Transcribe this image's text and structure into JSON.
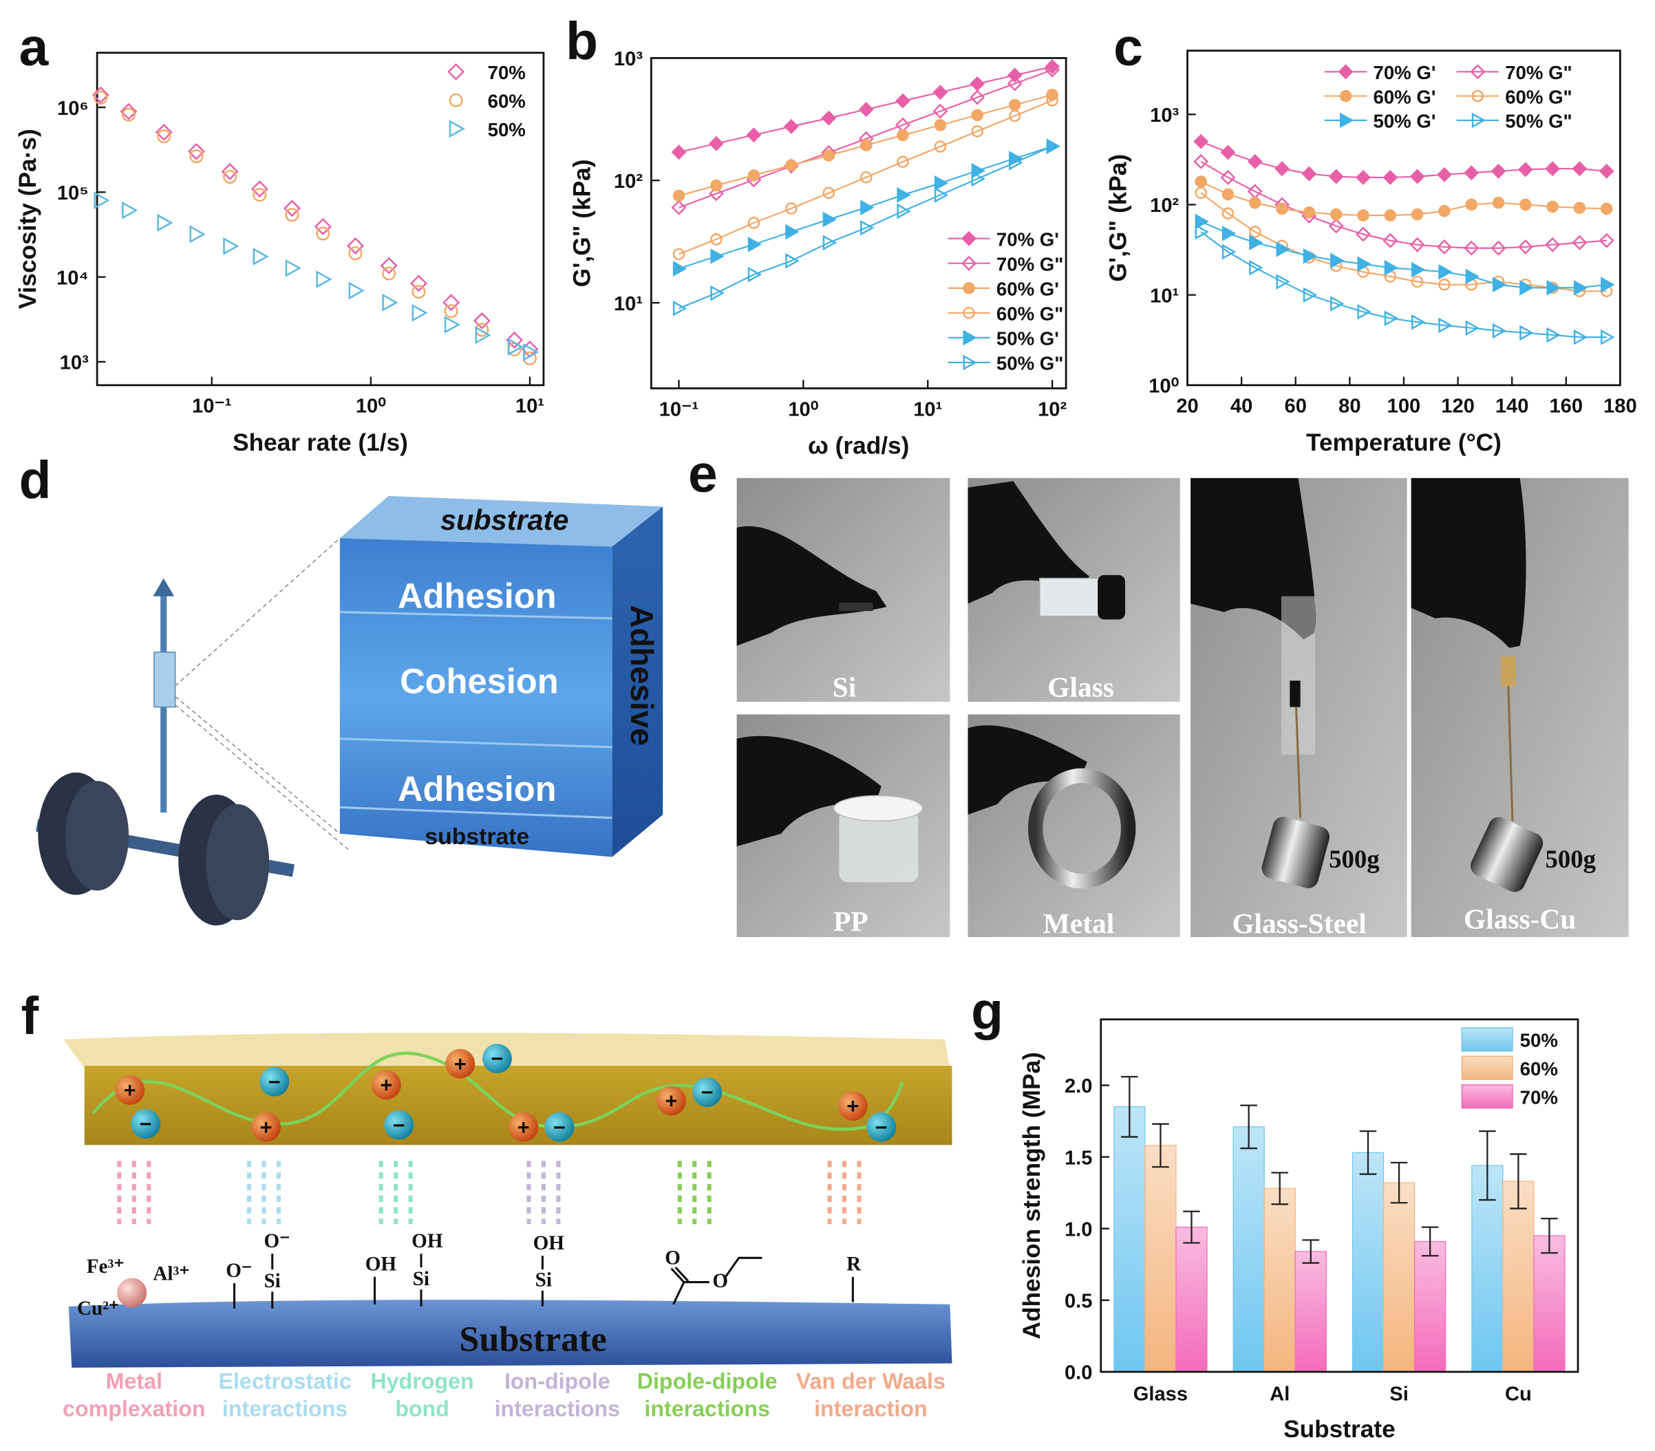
{
  "chart_data": [
    {
      "panel": "a",
      "type": "scatter",
      "xlabel": "Shear rate (1/s)",
      "ylabel": "Viscosity (Pa·s)",
      "xscale": "log",
      "yscale": "log",
      "x": [
        0.02,
        0.03,
        0.05,
        0.08,
        0.13,
        0.2,
        0.32,
        0.5,
        0.8,
        1.3,
        2,
        3.2,
        5,
        8,
        10
      ],
      "xlim": [
        0.019,
        12.2
      ],
      "ylim": [
        530,
        4400000
      ],
      "xticks": [
        {
          "value": 0.1,
          "label": "10⁻¹"
        },
        {
          "value": 1,
          "label": "10⁰"
        },
        {
          "value": 10,
          "label": "10¹"
        }
      ],
      "yticks": [
        {
          "value": 1000,
          "label": "10³"
        },
        {
          "value": 10000,
          "label": "10⁴"
        },
        {
          "value": 100000,
          "label": "10⁵"
        },
        {
          "value": 1000000,
          "label": "10⁶"
        }
      ],
      "legend": "upper right",
      "series": [
        {
          "name": "70%",
          "color": "#e85fa8",
          "marker": "diamond",
          "filled": false,
          "values": [
            1400000,
            893000,
            507000,
            301000,
            175000,
            109000,
            64400,
            39200,
            23200,
            13600,
            8400,
            5000,
            3040,
            1800,
            1410
          ]
        },
        {
          "name": "60%",
          "color": "#f2a765",
          "marker": "circle",
          "filled": false,
          "values": [
            1300000,
            820000,
            455000,
            265000,
            152000,
            93000,
            54000,
            32500,
            19000,
            11000,
            6700,
            3950,
            2380,
            1400,
            1100
          ]
        },
        {
          "name": "50%",
          "color": "#5ab8e4",
          "marker": "triangle-right",
          "filled": false,
          "values": [
            80000,
            61000,
            43600,
            31900,
            23100,
            17400,
            12700,
            9400,
            6900,
            5000,
            3770,
            2740,
            2060,
            1500,
            1300
          ]
        }
      ]
    },
    {
      "panel": "b",
      "type": "line",
      "xlabel": "ω (rad/s)",
      "ylabel": "G',G\" (kPa)",
      "xscale": "log",
      "yscale": "log",
      "x": [
        0.1,
        0.2,
        0.4,
        0.8,
        1.6,
        3.2,
        6.3,
        12.6,
        25,
        50,
        100
      ],
      "xlim": [
        0.06,
        129
      ],
      "ylim": [
        2,
        1000
      ],
      "xticks": [
        {
          "value": 0.1,
          "label": "10⁻¹"
        },
        {
          "value": 1,
          "label": "10⁰"
        },
        {
          "value": 10,
          "label": "10¹"
        },
        {
          "value": 100,
          "label": "10²"
        }
      ],
      "yticks": [
        {
          "value": 10,
          "label": "10¹"
        },
        {
          "value": 100,
          "label": "10²"
        },
        {
          "value": 1000,
          "label": "10³"
        }
      ],
      "legend": "lower right",
      "series": [
        {
          "name": "70% G'",
          "color": "#e85fa8",
          "marker": "diamond",
          "filled": true,
          "values": [
            170,
            200,
            235,
            276,
            323,
            380,
            447,
            525,
            616,
            724,
            850
          ]
        },
        {
          "name": "70% G\"",
          "color": "#e85fa8",
          "marker": "diamond",
          "filled": false,
          "values": [
            60,
            78,
            101,
            131,
            169,
            219,
            284,
            368,
            477,
            618,
            800
          ]
        },
        {
          "name": "60% G'",
          "color": "#f2a765",
          "marker": "circle",
          "filled": true,
          "values": [
            75,
            91,
            110,
            133,
            160,
            194,
            234,
            283,
            342,
            414,
            500
          ]
        },
        {
          "name": "60% G\"",
          "color": "#f2a765",
          "marker": "circle",
          "filled": false,
          "values": [
            25,
            33,
            45,
            59,
            79,
            106,
            142,
            189,
            252,
            337,
            450
          ]
        },
        {
          "name": "50% G'",
          "color": "#3fb1e5",
          "marker": "triangle-right",
          "filled": true,
          "values": [
            19,
            24,
            30,
            38,
            48,
            60,
            76,
            95,
            120,
            151,
            190
          ]
        },
        {
          "name": "50% G\"",
          "color": "#3fb1e5",
          "marker": "triangle-right",
          "filled": false,
          "values": [
            9,
            12,
            17,
            22,
            31,
            41,
            56,
            76,
            103,
            140,
            190
          ]
        }
      ]
    },
    {
      "panel": "c",
      "type": "line",
      "xlabel": "Temperature (°C)",
      "ylabel": "G',G\" (kPa)",
      "xscale": "linear",
      "yscale": "log",
      "x": [
        25,
        35,
        45,
        55,
        65,
        75,
        85,
        95,
        105,
        115,
        125,
        135,
        145,
        155,
        165,
        175
      ],
      "xlim": [
        20,
        180
      ],
      "ylim": [
        1,
        5080
      ],
      "xticks": [
        20,
        40,
        60,
        80,
        100,
        120,
        140,
        160,
        180
      ],
      "yticks": [
        {
          "value": 1,
          "label": "10⁰"
        },
        {
          "value": 10,
          "label": "10¹"
        },
        {
          "value": 100,
          "label": "10²"
        },
        {
          "value": 1000,
          "label": "10³"
        }
      ],
      "legend": "upper center",
      "legend_columns": 2,
      "series": [
        {
          "name": "70% G'",
          "color": "#e85fa8",
          "marker": "diamond",
          "filled": true,
          "values": [
            500,
            380,
            300,
            250,
            220,
            205,
            200,
            200,
            205,
            215,
            225,
            235,
            245,
            250,
            250,
            235
          ]
        },
        {
          "name": "70% G\"",
          "color": "#e85fa8",
          "marker": "diamond",
          "filled": false,
          "values": [
            300,
            200,
            140,
            100,
            75,
            58,
            47,
            40,
            36,
            34,
            33,
            33,
            34,
            36,
            38,
            40
          ]
        },
        {
          "name": "60% G'",
          "color": "#f2a765",
          "marker": "circle",
          "filled": true,
          "values": [
            180,
            130,
            105,
            90,
            82,
            78,
            76,
            76,
            78,
            85,
            100,
            105,
            100,
            95,
            92,
            90
          ]
        },
        {
          "name": "60% G\"",
          "color": "#f2a765",
          "marker": "circle",
          "filled": false,
          "values": [
            135,
            80,
            50,
            35,
            26,
            21,
            18,
            16,
            14,
            13,
            13,
            14,
            13,
            12,
            11,
            11
          ]
        },
        {
          "name": "50% G'",
          "color": "#3fb1e5",
          "marker": "triangle-right",
          "filled": true,
          "values": [
            65,
            48,
            38,
            32,
            27,
            24,
            22,
            20,
            19,
            18,
            16,
            13,
            12,
            12,
            12,
            13
          ]
        },
        {
          "name": "50% G\"",
          "color": "#3fb1e5",
          "marker": "triangle-right",
          "filled": false,
          "values": [
            50,
            30,
            20,
            14,
            10,
            8,
            6.5,
            5.5,
            5,
            4.6,
            4.3,
            4,
            3.8,
            3.6,
            3.4,
            3.4
          ]
        }
      ]
    },
    {
      "panel": "g",
      "type": "bar",
      "xlabel": "Substrate",
      "ylabel": "Adhesion strength (MPa)",
      "categories": [
        "Glass",
        "Al",
        "Si",
        "Cu"
      ],
      "ylim": [
        0,
        2.46
      ],
      "yticks": [
        {
          "value": 0,
          "label": "0.0"
        },
        0.5,
        {
          "value": 1,
          "label": "1.0"
        },
        1.5,
        {
          "value": 2,
          "label": "2.0"
        }
      ],
      "legend": "upper right",
      "series": [
        {
          "name": "50%",
          "color": "#6ec6f0",
          "values": [
            1.85,
            1.71,
            1.53,
            1.44
          ],
          "errors": [
            0.21,
            0.15,
            0.15,
            0.24
          ]
        },
        {
          "name": "60%",
          "color": "#f4b57e",
          "values": [
            1.58,
            1.28,
            1.32,
            1.33
          ],
          "errors": [
            0.15,
            0.11,
            0.14,
            0.19
          ]
        },
        {
          "name": "70%",
          "color": "#f36bbb",
          "values": [
            1.01,
            0.84,
            0.91,
            0.95
          ],
          "errors": [
            0.11,
            0.08,
            0.1,
            0.12
          ]
        }
      ]
    }
  ],
  "panel_d": {
    "label": "d",
    "layers": [
      "substrate",
      "Adhesion",
      "Cohesion",
      "Adhesion",
      "substrate"
    ],
    "side": "Adhesive"
  },
  "panel_e": {
    "label": "e",
    "photos": [
      "Si",
      "Glass",
      "PP",
      "Metal",
      "Glass-Steel",
      "Glass-Cu"
    ],
    "weights": [
      "500g",
      "500g"
    ]
  },
  "panel_f": {
    "label": "f",
    "substrate": "Substrate",
    "cation": "+",
    "anion": "−",
    "ions": [
      "Fe³⁺",
      "Al³⁺",
      "Cu²⁺"
    ],
    "groups": [
      "O⁻",
      "O⁻",
      "Si",
      "OH",
      "OH",
      "Si",
      "OH",
      "Si",
      "O",
      "O",
      "R"
    ],
    "interactions": [
      [
        "Metal",
        "complexation"
      ],
      [
        "Electrostatic",
        "interactions"
      ],
      [
        "Hydrogen",
        "bond"
      ],
      [
        "Ion-dipole",
        "interactions"
      ],
      [
        "Dipole-dipole",
        "interactions"
      ],
      [
        "Van der Waals",
        "interaction"
      ]
    ]
  }
}
